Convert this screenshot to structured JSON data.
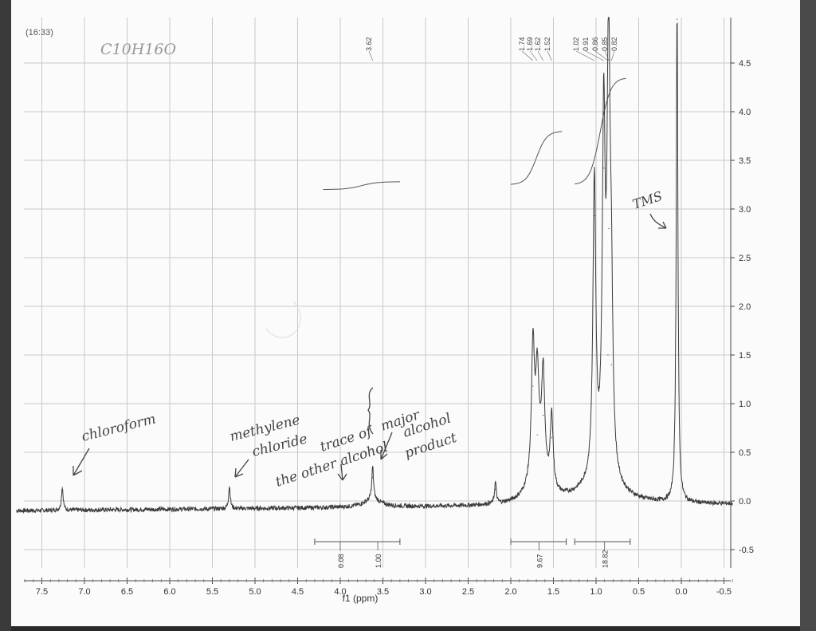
{
  "timestamp": "(16:33)",
  "chart_data": {
    "type": "line",
    "title": "",
    "xlabel": "f1 (ppm)",
    "ylabel": "",
    "xlim": [
      7.8,
      -0.6
    ],
    "ylim": [
      -0.65,
      4.95
    ],
    "x_reversed": true,
    "grid": true,
    "x_ticks": [
      "7.5",
      "7.0",
      "6.5",
      "6.0",
      "5.5",
      "5.0",
      "4.5",
      "4.0",
      "3.5",
      "3.0",
      "2.5",
      "2.0",
      "1.5",
      "1.0",
      "0.5",
      "0.0",
      "-0.5"
    ],
    "y_ticks": [
      "4.5",
      "4.0",
      "3.5",
      "3.0",
      "2.5",
      "2.0",
      "1.5",
      "1.0",
      "0.5",
      "0.0",
      "-0.5"
    ],
    "baseline": -0.1,
    "peaks": [
      {
        "x": 7.26,
        "y": 0.14
      },
      {
        "x": 5.3,
        "y": 0.13
      },
      {
        "x": 3.62,
        "y": 0.24
      },
      {
        "x": 2.18,
        "y": 0.12
      },
      {
        "x": 1.74,
        "y": 1.18
      },
      {
        "x": 1.69,
        "y": 0.68
      },
      {
        "x": 1.62,
        "y": 0.88
      },
      {
        "x": 1.52,
        "y": 0.65
      },
      {
        "x": 1.02,
        "y": 2.93
      },
      {
        "x": 0.91,
        "y": 3.42
      },
      {
        "x": 0.86,
        "y": 1.5
      },
      {
        "x": 0.85,
        "y": 2.8
      },
      {
        "x": 0.82,
        "y": 1.4
      },
      {
        "x": 0.05,
        "y": 4.95
      }
    ],
    "peak_labels": [
      {
        "x": 3.62,
        "text": "3.62"
      },
      {
        "x": 1.74,
        "text": "1.74"
      },
      {
        "x": 1.69,
        "text": "1.69"
      },
      {
        "x": 1.62,
        "text": "1.62"
      },
      {
        "x": 1.52,
        "text": "1.52"
      },
      {
        "x": 1.02,
        "text": "1.02"
      },
      {
        "x": 0.91,
        "text": "0.91"
      },
      {
        "x": 0.86,
        "text": "0.86"
      },
      {
        "x": 0.85,
        "text": "0.85"
      },
      {
        "x": 0.82,
        "text": "0.82"
      }
    ],
    "integrations": [
      {
        "from": 4.3,
        "to": 3.3,
        "value": "0.08",
        "label_x": 4.0
      },
      {
        "from": 4.3,
        "to": 3.3,
        "value": "1.00",
        "label_x": 3.56
      },
      {
        "from": 2.0,
        "to": 1.35,
        "value": "9.67",
        "label_x": 1.67
      },
      {
        "from": 1.25,
        "to": 0.6,
        "value": "18.82",
        "label_x": 0.9
      }
    ]
  },
  "handwriting": {
    "formula": "C10H16O",
    "chloroform": "chloroform",
    "methylene_1": "methylene",
    "methylene_2": "chloride",
    "trace_1": "trace of",
    "trace_2": "the other alcohol",
    "major_1": "major",
    "major_2": "alcohol",
    "major_3": "product",
    "tms": "TMS"
  }
}
